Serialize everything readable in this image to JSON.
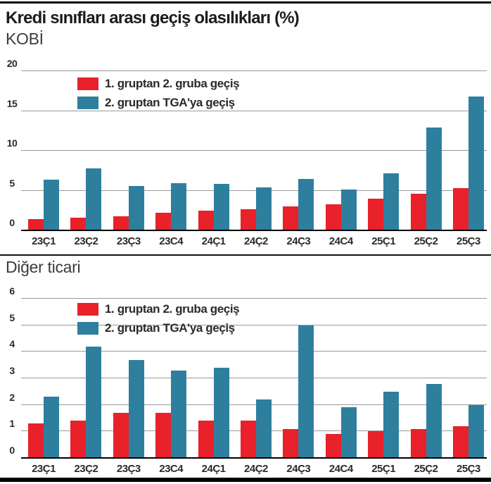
{
  "page": {
    "title": "Kredi sınıfları arası geçiş olasılıkları (%)"
  },
  "legend": {
    "series1_label": "1. gruptan 2. gruba geçiş",
    "series2_label": "2. gruptan TGA'ya geçiş"
  },
  "colors": {
    "series1": "#e8212b",
    "series2": "#2e7f9e",
    "gridline": "#9a9a9a",
    "axis": "#000000",
    "title_text": "#1c1c1a",
    "subtitle_text": "#3d3c3b"
  },
  "chart_data": [
    {
      "type": "bar",
      "title": "KOBİ",
      "categories": [
        "23Ç1",
        "23Ç2",
        "23Ç3",
        "23C4",
        "24Ç1",
        "24Ç2",
        "24Ç3",
        "24C4",
        "25Ç1",
        "25Ç2",
        "25Ç3"
      ],
      "series": [
        {
          "name": "1. gruptan 2. gruba geçiş",
          "color": "#e8212b",
          "values": [
            1.4,
            1.6,
            1.8,
            2.2,
            2.5,
            2.7,
            3.0,
            3.3,
            4.0,
            4.6,
            5.3
          ]
        },
        {
          "name": "2. gruptan TGA'ya geçiş",
          "color": "#2e7f9e",
          "values": [
            6.4,
            7.8,
            5.6,
            5.9,
            5.8,
            5.4,
            6.5,
            5.1,
            7.2,
            12.9,
            16.8
          ]
        }
      ],
      "ylim": [
        0,
        20
      ],
      "yticks": [
        0,
        5,
        10,
        15,
        20
      ],
      "grid": true,
      "legend_position": "inside-top-left"
    },
    {
      "type": "bar",
      "title": "Diğer ticari",
      "categories": [
        "23Ç1",
        "23Ç2",
        "23Ç3",
        "23C4",
        "24Ç1",
        "24Ç2",
        "24Ç3",
        "24C4",
        "25Ç1",
        "25Ç2",
        "25Ç3"
      ],
      "series": [
        {
          "name": "1. gruptan 2. gruba geçiş",
          "color": "#e8212b",
          "values": [
            1.3,
            1.4,
            1.7,
            1.7,
            1.4,
            1.4,
            1.1,
            0.9,
            1.0,
            1.1,
            1.2
          ]
        },
        {
          "name": "2. gruptan TGA'ya geçiş",
          "color": "#2e7f9e",
          "values": [
            2.3,
            4.2,
            3.7,
            3.3,
            3.4,
            2.2,
            5.0,
            1.9,
            2.5,
            2.8,
            2.0
          ]
        }
      ],
      "ylim": [
        0,
        6
      ],
      "yticks": [
        0,
        1,
        2,
        3,
        4,
        5,
        6
      ],
      "grid": true,
      "legend_position": "inside-top-left"
    }
  ]
}
